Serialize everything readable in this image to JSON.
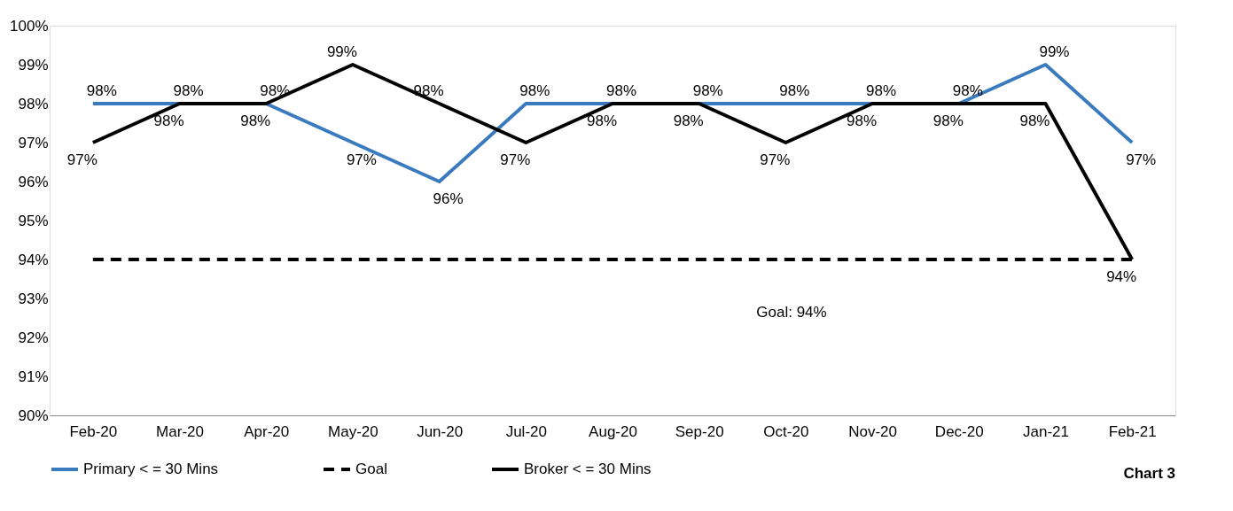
{
  "chart_data": {
    "type": "line",
    "categories": [
      "Feb-20",
      "Mar-20",
      "Apr-20",
      "May-20",
      "Jun-20",
      "Jul-20",
      "Aug-20",
      "Sep-20",
      "Oct-20",
      "Nov-20",
      "Dec-20",
      "Jan-21",
      "Feb-21"
    ],
    "series": [
      {
        "name": "Primary < = 30 Mins",
        "color": "#3a7bbf",
        "line_style": "solid",
        "values": [
          98,
          98,
          98,
          97,
          96,
          98,
          98,
          98,
          98,
          98,
          98,
          99,
          97
        ],
        "value_labels": [
          "98%",
          "98%",
          "98%",
          "97%",
          "96%",
          "98%",
          "98%",
          "98%",
          "98%",
          "98%",
          "98%",
          "99%",
          "97%"
        ]
      },
      {
        "name": "Goal",
        "color": "#000000",
        "line_style": "dashed",
        "values": [
          94,
          94,
          94,
          94,
          94,
          94,
          94,
          94,
          94,
          94,
          94,
          94,
          94
        ]
      },
      {
        "name": "Broker < = 30 Mins",
        "color": "#000000",
        "line_style": "solid",
        "values": [
          97,
          98,
          98,
          99,
          98,
          97,
          98,
          98,
          97,
          98,
          98,
          98,
          94
        ],
        "value_labels": [
          "97%",
          "98%",
          "98%",
          "99%",
          "98%",
          "97%",
          "98%",
          "98%",
          "97%",
          "98%",
          "98%",
          "98%",
          "94%"
        ]
      }
    ],
    "ylim": [
      90,
      100
    ],
    "yticks": [
      {
        "value": 90,
        "label": "90%"
      },
      {
        "value": 91,
        "label": "91%"
      },
      {
        "value": 92,
        "label": "92%"
      },
      {
        "value": 93,
        "label": "93%"
      },
      {
        "value": 94,
        "label": "94%"
      },
      {
        "value": 95,
        "label": "95%"
      },
      {
        "value": 96,
        "label": "96%"
      },
      {
        "value": 97,
        "label": "97%"
      },
      {
        "value": 98,
        "label": "98%"
      },
      {
        "value": 99,
        "label": "99%"
      },
      {
        "value": 100,
        "label": "100%"
      }
    ],
    "grid": false,
    "legend": "bottom",
    "marker": "none",
    "annotations": [
      "Goal: 94%",
      "Chart 3"
    ]
  }
}
